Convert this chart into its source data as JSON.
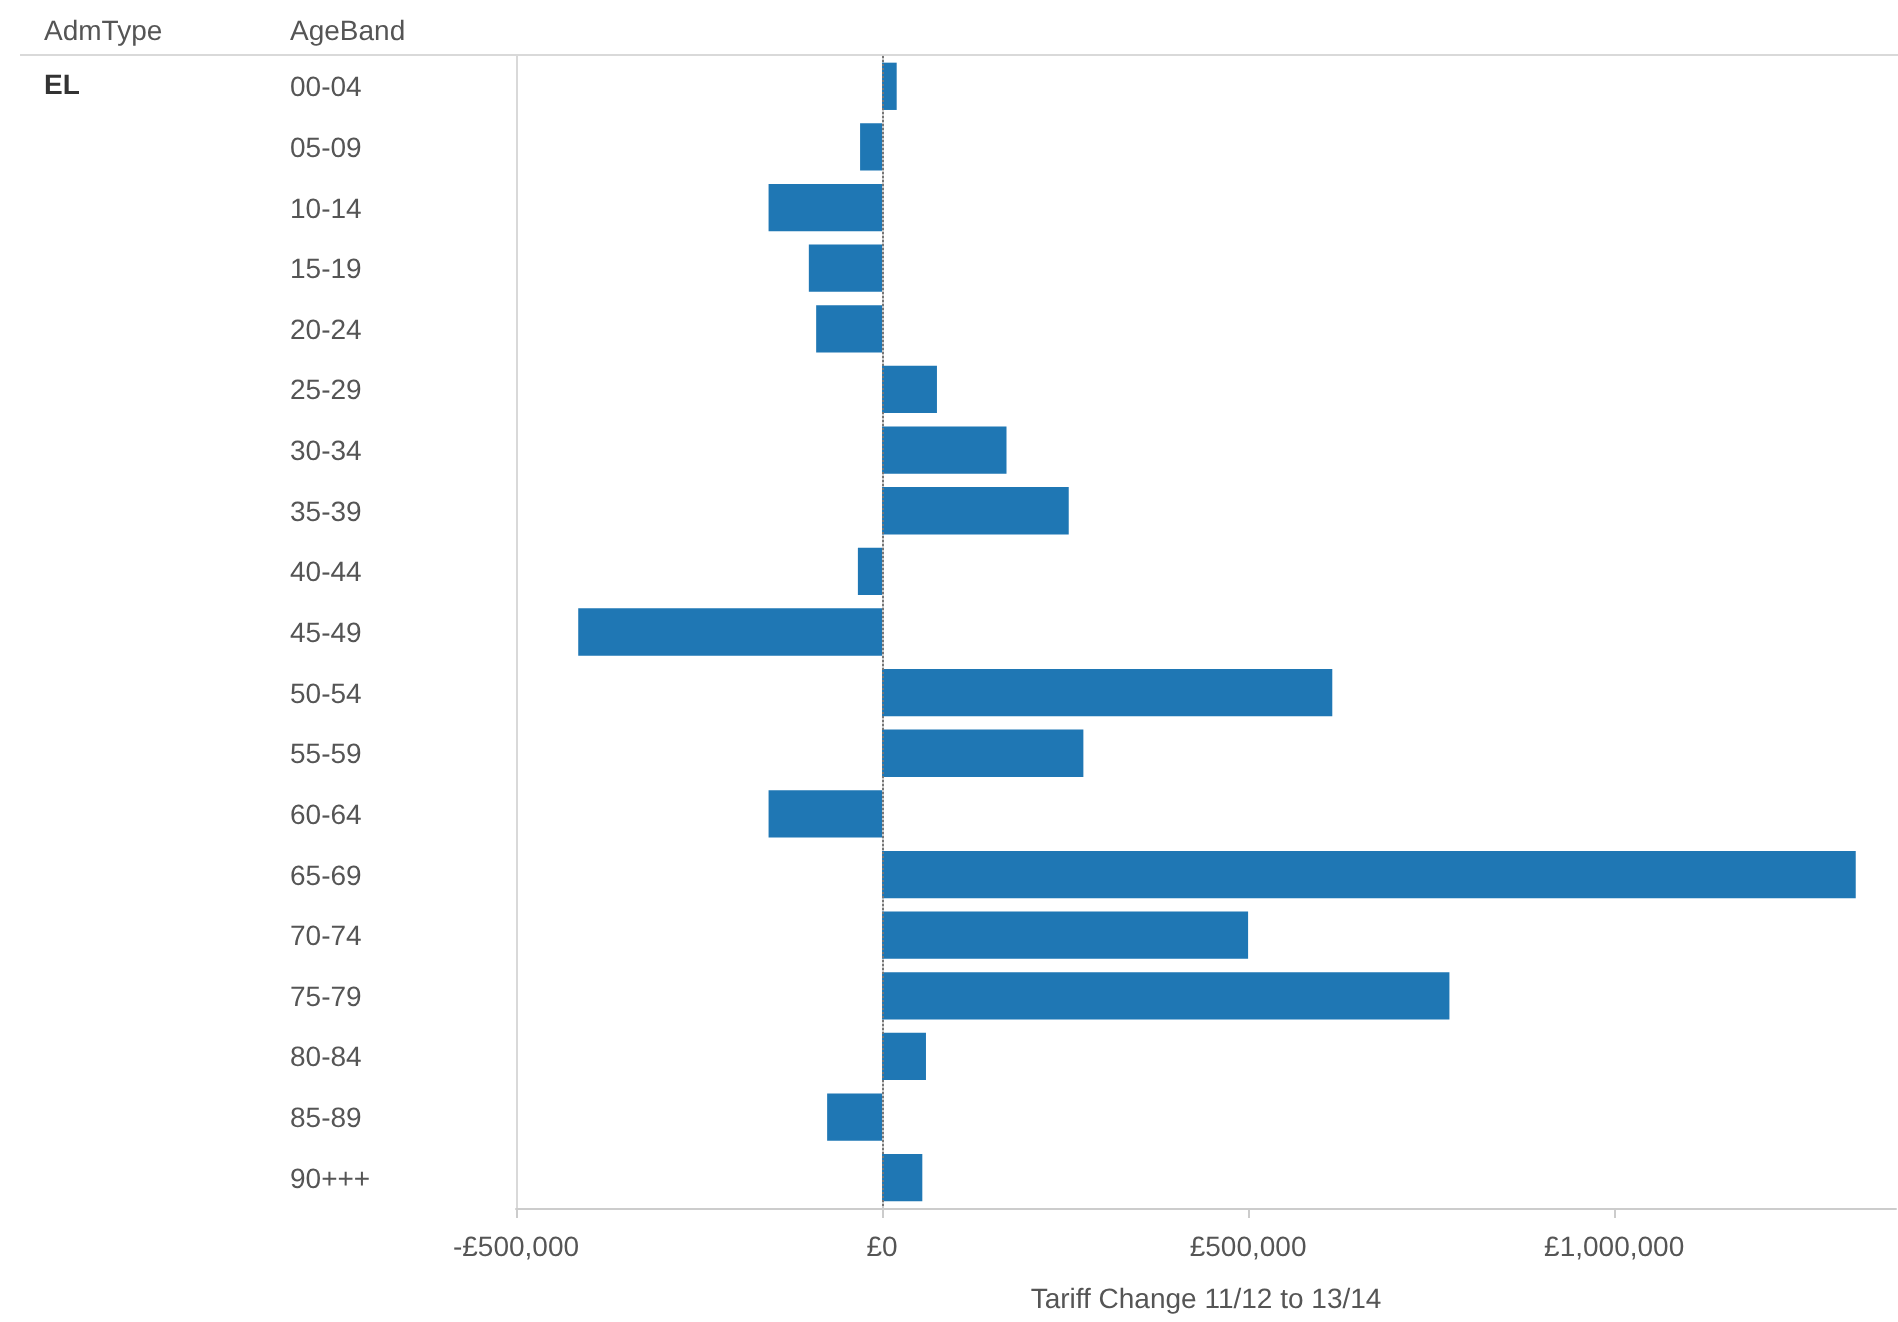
{
  "chart_data": {
    "type": "bar",
    "orientation": "horizontal",
    "xlabel": "Tariff Change 11/12 to 13/14",
    "ylabel": "AgeBand",
    "annotations": [
      "AdmType",
      "EL"
    ],
    "categories": [
      "00-04",
      "05-09",
      "10-14",
      "15-19",
      "20-24",
      "25-29",
      "30-34",
      "35-39",
      "40-44",
      "45-49",
      "50-54",
      "55-59",
      "60-64",
      "65-69",
      "70-74",
      "75-79",
      "80-84",
      "85-89",
      "90+++"
    ],
    "values": [
      20000,
      -30000,
      -155000,
      -100000,
      -90000,
      75000,
      170000,
      255000,
      -33000,
      -415000,
      615000,
      275000,
      -155000,
      1330000,
      500000,
      775000,
      60000,
      -75000,
      55000
    ],
    "color": "#1f77b4",
    "xlim": [
      -500000,
      1385000
    ],
    "xticks": [
      {
        "value": -500000,
        "label": "-£500,000"
      },
      {
        "value": 0,
        "label": "£0"
      },
      {
        "value": 500000,
        "label": "£500,000"
      },
      {
        "value": 1000000,
        "label": "£1,000,000"
      }
    ],
    "ref_lines": [
      {
        "axis": "x",
        "value": 0,
        "color": "#777777",
        "line_style": "dotted"
      }
    ],
    "grid": false
  }
}
